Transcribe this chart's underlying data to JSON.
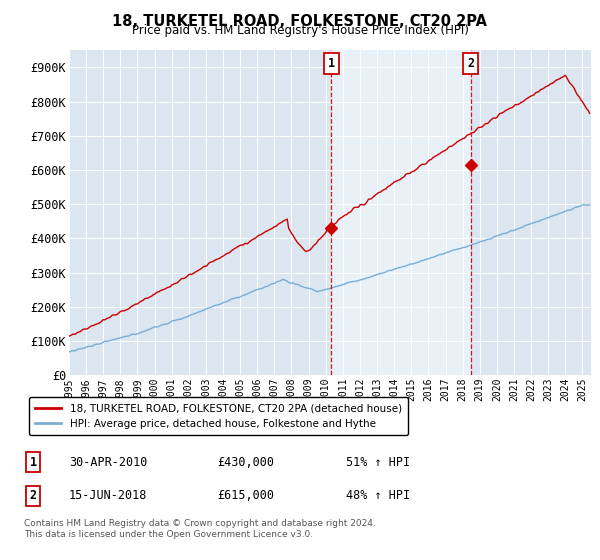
{
  "title": "18, TURKETEL ROAD, FOLKESTONE, CT20 2PA",
  "subtitle": "Price paid vs. HM Land Registry's House Price Index (HPI)",
  "hpi_label": "HPI: Average price, detached house, Folkestone and Hythe",
  "price_label": "18, TURKETEL ROAD, FOLKESTONE, CT20 2PA (detached house)",
  "footnote": "Contains HM Land Registry data © Crown copyright and database right 2024.\nThis data is licensed under the Open Government Licence v3.0.",
  "annotation1": {
    "num": "1",
    "date": "30-APR-2010",
    "price": "£430,000",
    "hpi": "51% ↑ HPI"
  },
  "annotation2": {
    "num": "2",
    "date": "15-JUN-2018",
    "price": "£615,000",
    "hpi": "48% ↑ HPI"
  },
  "price_color": "#cc0000",
  "hpi_color": "#7aadd4",
  "annotation_color": "#cc0000",
  "plot_bg_color": "#dce6f1",
  "highlight_bg_color": "#e8f0f8",
  "ylim": [
    0,
    950000
  ],
  "yticks": [
    0,
    100000,
    200000,
    300000,
    400000,
    500000,
    600000,
    700000,
    800000,
    900000
  ],
  "ytick_labels": [
    "£0",
    "£100K",
    "£200K",
    "£300K",
    "£400K",
    "£500K",
    "£600K",
    "£700K",
    "£800K",
    "£900K"
  ],
  "pt1_year": 2010.33,
  "pt2_year": 2018.46,
  "pt1_price": 430000,
  "pt2_price": 615000,
  "xlim_start": 1995.0,
  "xlim_end": 2025.5
}
